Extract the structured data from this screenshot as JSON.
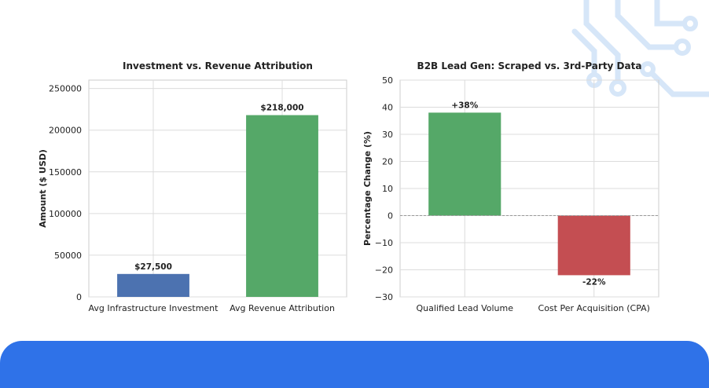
{
  "chart_data": [
    {
      "type": "bar",
      "title": "Investment vs. Revenue Attribution",
      "xlabel": "",
      "ylabel": "Amount ($ USD)",
      "ylim": [
        0,
        260000
      ],
      "yticks": [
        0,
        50000,
        100000,
        150000,
        200000,
        250000
      ],
      "ytick_labels": [
        "0",
        "50000",
        "100000",
        "150000",
        "200000",
        "250000"
      ],
      "grid": true,
      "categories": [
        "Avg Infrastructure Investment",
        "Avg Revenue Attribution"
      ],
      "values": [
        27500,
        218000
      ],
      "value_labels": [
        "$27,500",
        "$218,000"
      ],
      "colors": [
        "#4c72b0",
        "#55a868"
      ]
    },
    {
      "type": "bar",
      "title": "B2B Lead Gen: Scraped vs. 3rd-Party Data",
      "xlabel": "",
      "ylabel": "Percentage Change (%)",
      "ylim": [
        -30,
        50
      ],
      "yticks": [
        -30,
        -20,
        -10,
        0,
        10,
        20,
        30,
        40,
        50
      ],
      "ytick_labels": [
        "−30",
        "−20",
        "−10",
        "0",
        "10",
        "20",
        "30",
        "40",
        "50"
      ],
      "grid": true,
      "zero_line": true,
      "categories": [
        "Qualified Lead Volume",
        "Cost Per Acquisition (CPA)"
      ],
      "values": [
        38,
        -22
      ],
      "value_labels": [
        "+38%",
        "-22%"
      ],
      "colors": [
        "#55a868",
        "#c44e52"
      ]
    }
  ],
  "theme": {
    "accent": "#2f72e8",
    "grid": "#dcdcdc",
    "axis": "#cccccc",
    "text": "#222222",
    "deco": "#cfe1f7"
  }
}
